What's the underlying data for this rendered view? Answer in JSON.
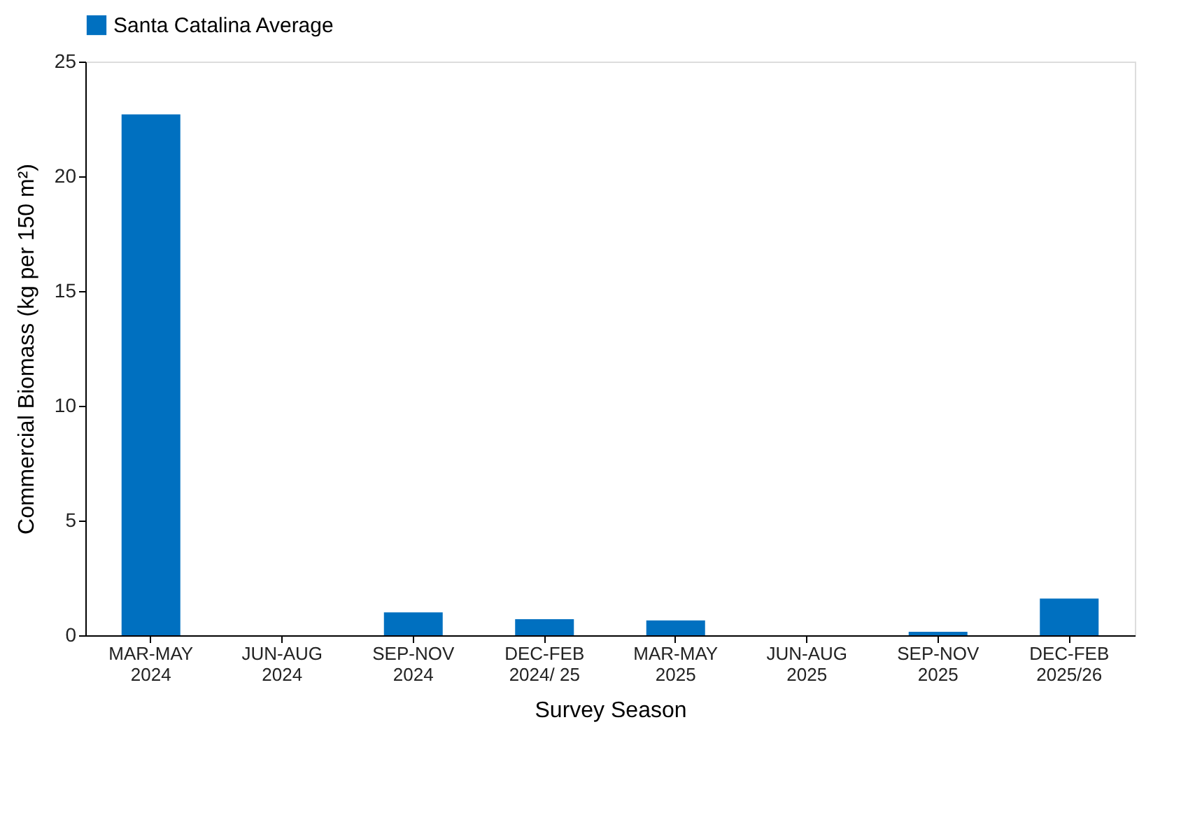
{
  "chart_data": {
    "type": "bar",
    "xlabel": "Survey Season",
    "ylabel": "Commercial Biomass (kg per 150 m²)",
    "categories": [
      "MAR-MAY\n2024",
      "JUN-AUG\n2024",
      "SEP-NOV\n2024",
      "DEC-FEB\n2024/ 25",
      "MAR-MAY\n2025",
      "JUN-AUG\n2025",
      "SEP-NOV\n2025",
      "DEC-FEB\n2025/26"
    ],
    "series": [
      {
        "name": "Santa Catalina Average",
        "color": "#0070c0",
        "values": [
          22.7,
          0,
          1.0,
          0.7,
          0.65,
          0,
          0.15,
          1.6
        ]
      }
    ],
    "ylim": [
      0,
      25
    ],
    "yticks": [
      0,
      5,
      10,
      15,
      20,
      25
    ],
    "grid": false,
    "legend": "top"
  }
}
